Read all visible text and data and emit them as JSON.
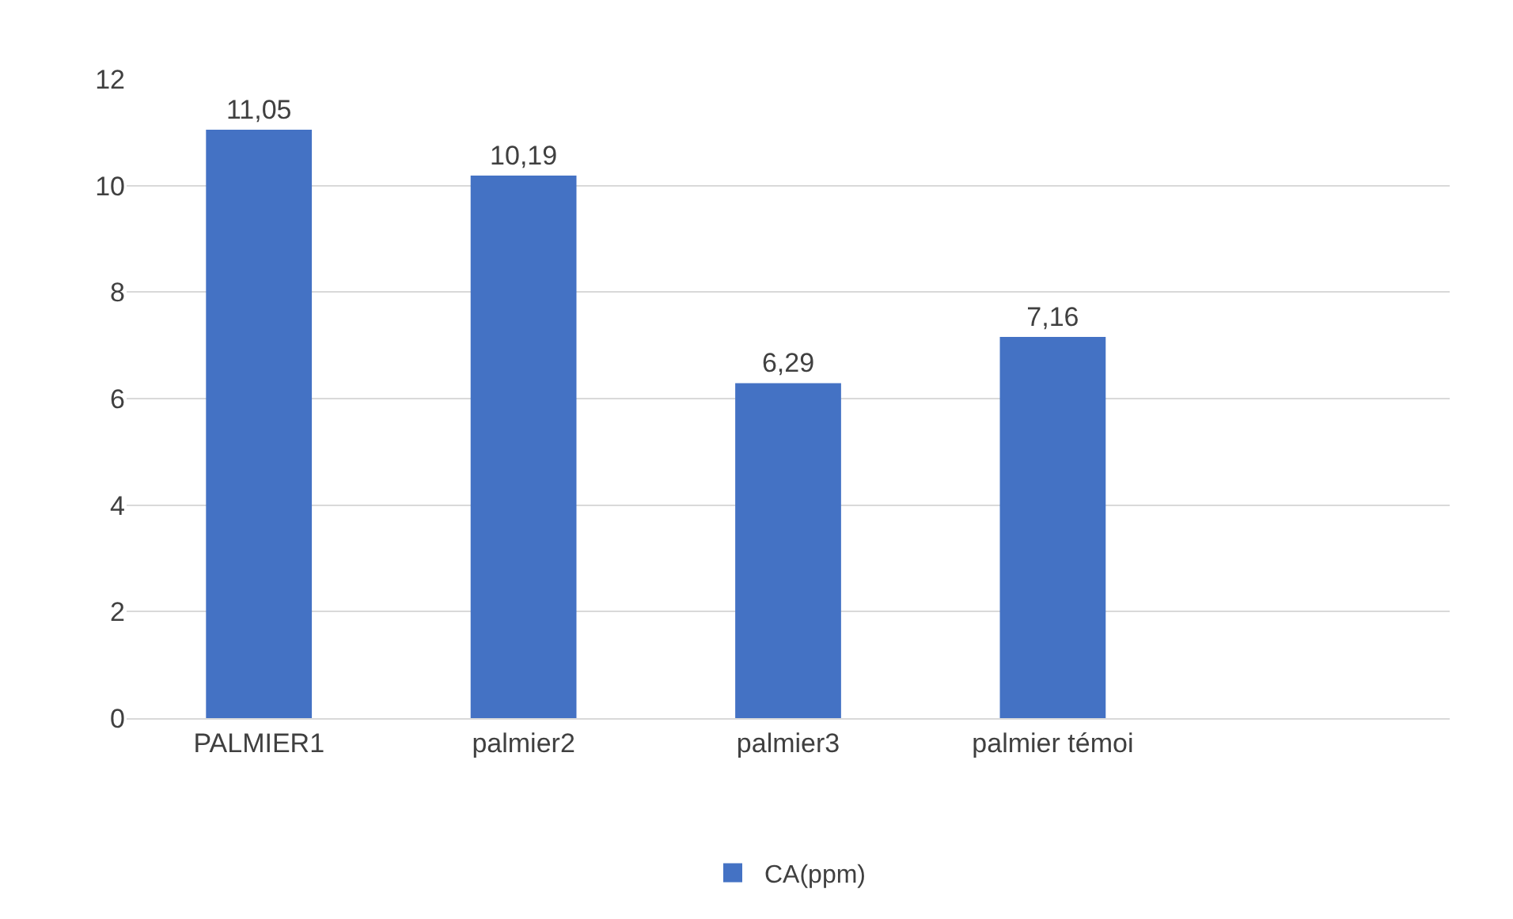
{
  "chart_data": {
    "type": "bar",
    "categories": [
      "PALMIER1",
      "palmier2",
      "palmier3",
      "palmier témoi"
    ],
    "series": [
      {
        "name": "CA(ppm)",
        "color": "#4472c4",
        "values": [
          11.05,
          10.19,
          6.29,
          7.16
        ],
        "value_labels": [
          "11,05",
          "10,19",
          "6,29",
          "7,16"
        ]
      }
    ],
    "ylim": [
      0,
      12
    ],
    "yticks": [
      0,
      2,
      4,
      6,
      8,
      10,
      12
    ],
    "grid": "y",
    "legend": "bottom"
  }
}
